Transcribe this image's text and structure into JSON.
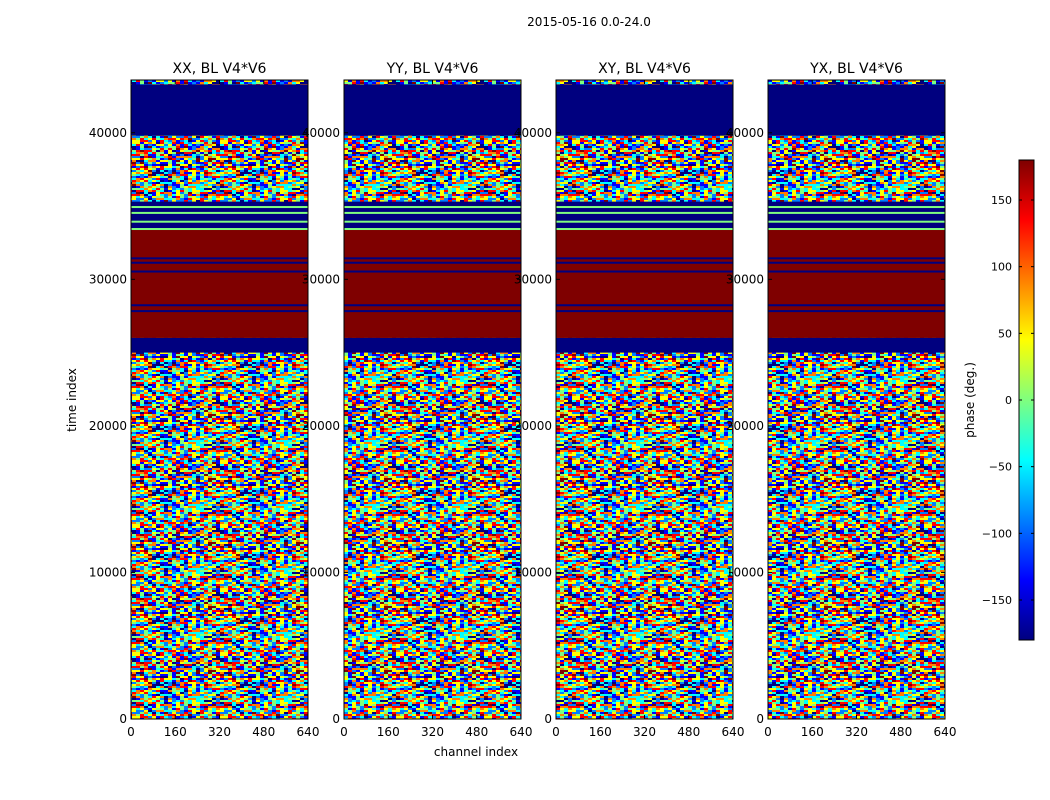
{
  "chart_data": {
    "type": "heatmap",
    "suptitle": "2015-05-16 0.0-24.0",
    "xlabel": "channel index",
    "ylabel": "time index",
    "xlim": [
      0,
      640
    ],
    "ylim": [
      0,
      43600
    ],
    "x_ticks": [
      "0",
      "160",
      "320",
      "480",
      "640"
    ],
    "y_ticks": [
      "0",
      "10000",
      "20000",
      "30000",
      "40000"
    ],
    "x_tick_values": [
      0,
      160,
      320,
      480,
      640
    ],
    "y_tick_values": [
      0,
      10000,
      20000,
      30000,
      40000
    ],
    "colorbar": {
      "label": "phase (deg.)",
      "range": [
        -180,
        180
      ],
      "tick_values": [
        150,
        100,
        50,
        0,
        -50,
        -100,
        -150
      ],
      "tick_labels": [
        "150",
        "100",
        "50",
        "0",
        "−50",
        "−100",
        "−150"
      ],
      "colormap": "jet",
      "colors": [
        "#00007f",
        "#0000ff",
        "#007fff",
        "#00ffff",
        "#7fff7f",
        "#ffff00",
        "#ff7f00",
        "#ff0000",
        "#7f0000"
      ]
    },
    "panels": [
      {
        "title": "XX, BL V4*V6"
      },
      {
        "title": "YY, BL V4*V6"
      },
      {
        "title": "XY, BL V4*V6"
      },
      {
        "title": "YX, BL V4*V6"
      }
    ],
    "bands": [
      {
        "from": 39800,
        "to": 43300,
        "phase": -180
      },
      {
        "from": 26000,
        "to": 33400,
        "phase": 180
      },
      {
        "from": 33400,
        "to": 35300,
        "phase": -180
      },
      {
        "from": 25000,
        "to": 26000,
        "phase": -180
      }
    ]
  }
}
